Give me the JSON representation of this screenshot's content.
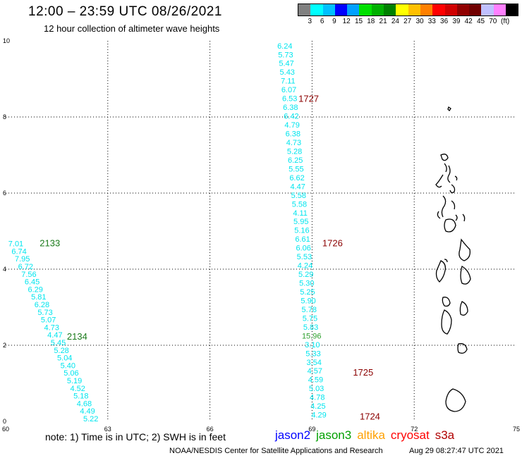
{
  "title": "12:00 – 23:59 UTC 08/26/2021",
  "subtitle": "12 hour collection of altimeter wave heights",
  "legend": {
    "colors": [
      "#808080",
      "#00ffff",
      "#00c0ff",
      "#0000ff",
      "#00a0ff",
      "#00e000",
      "#00b000",
      "#008000",
      "#ffff00",
      "#ffc000",
      "#ff8000",
      "#ff0000",
      "#d00000",
      "#900000",
      "#700000",
      "#c0c0ff",
      "#ff80ff",
      "#000000"
    ],
    "labels": [
      "3",
      "6",
      "9",
      "12",
      "15",
      "18",
      "21",
      "24",
      "27",
      "30",
      "33",
      "36",
      "39",
      "42",
      "45",
      "70",
      "(ft)"
    ]
  },
  "axes": {
    "x_ticks": [
      "60",
      "63",
      "66",
      "69",
      "72",
      "75"
    ],
    "y_ticks": [
      "0",
      "2",
      "4",
      "6",
      "8",
      "10"
    ]
  },
  "tracks": [
    {
      "color": "#00e5ee",
      "start": [
        68.2,
        9.8
      ],
      "end": [
        69.2,
        0.1
      ],
      "values": [
        "6.24",
        "5.73",
        "5.47",
        "5.43",
        "7.11",
        "6.07",
        "6.53",
        "6.38",
        "6.42",
        "4.79",
        "6.38",
        "4.73",
        "5.28",
        "6.25",
        "5.55",
        "6.62",
        "4.47",
        "5.58",
        "5.58",
        "4.11",
        "5.95",
        "5.16",
        "6.61",
        "6.06",
        "5.53",
        "4.24",
        "5.29",
        "5.30",
        "5.25",
        "5.90",
        "5.78",
        "5.75",
        "5.83",
        "15.96",
        "3.10",
        "5.33",
        "3.54",
        "4.57",
        "4.59",
        "5.03",
        "4.78",
        "4.25",
        "4.29"
      ],
      "highlight": {
        "33": "#2ea02e"
      },
      "time_labels": [
        {
          "text": "1727",
          "x": 68.9,
          "y": 8.4
        },
        {
          "text": "1726",
          "x": 69.6,
          "y": 4.6
        },
        {
          "text": "1725",
          "x": 70.5,
          "y": 1.2
        },
        {
          "text": "1724",
          "x": 70.7,
          "y": 0.05
        }
      ],
      "time_color": "#8b0000"
    },
    {
      "color": "#00e5ee",
      "start": [
        60.3,
        4.6
      ],
      "end": [
        62.5,
        0.0
      ],
      "values": [
        "7.01",
        "6.74",
        "7.95",
        "6.72",
        "7.56",
        "6.45",
        "6.29",
        "5.81",
        "6.28",
        "5.73",
        "5.07",
        "4.73",
        "4.47",
        "5.45",
        "5.28",
        "5.04",
        "5.40",
        "5.06",
        "5.19",
        "4.52",
        "5.18",
        "4.68",
        "4.49",
        "5.22"
      ],
      "highlight": {},
      "time_labels": [
        {
          "text": "2133",
          "x": 61.3,
          "y": 4.6
        },
        {
          "text": "2134",
          "x": 62.1,
          "y": 2.15
        }
      ],
      "time_color": "#1a7a1a"
    }
  ],
  "note": "note:  1) Time is in UTC;  2) SWH is in feet",
  "satellites": [
    {
      "name": "jason2",
      "color": "#0000ff"
    },
    {
      "name": "jason3",
      "color": "#00a000"
    },
    {
      "name": "altika",
      "color": "#ffa000"
    },
    {
      "name": "cryosat",
      "color": "#ff0000"
    },
    {
      "name": "s3a",
      "color": "#b00000"
    }
  ],
  "footer": {
    "credit": "NOAA/NESDIS Center for Satellite Applications and Research",
    "timestamp": "Aug 29 08:27:47 UTC 2021"
  }
}
